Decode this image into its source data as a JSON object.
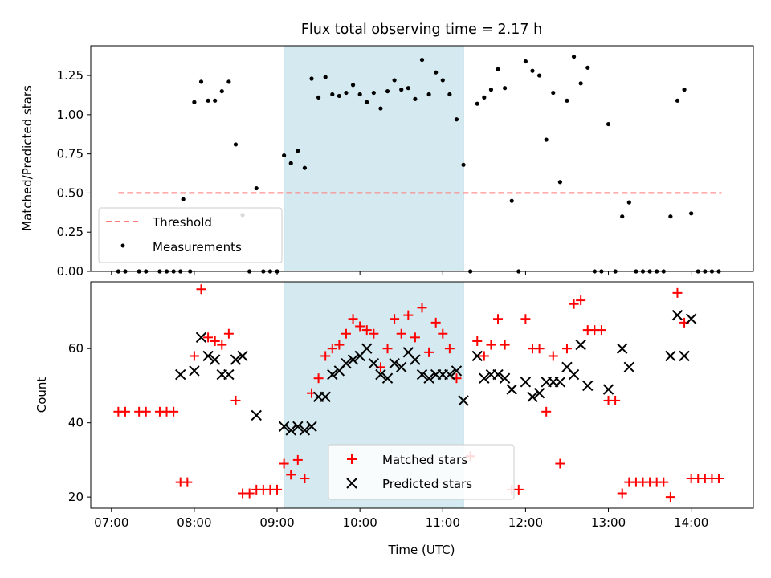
{
  "chart_data": [
    {
      "type": "scatter",
      "title": "Flux total observing time = 2.17 h",
      "ylabel": "Matched/Predicted stars",
      "xlabel": "",
      "xlim": [
        "06:45",
        "14:45"
      ],
      "ylim": [
        0,
        1.44
      ],
      "yticks": [
        0,
        0.25,
        0.5,
        0.75,
        1.0,
        1.25
      ],
      "ytick_labels": [
        "0.00",
        "0.25",
        "0.50",
        "0.75",
        "1.00",
        "1.25"
      ],
      "shaded_interval": {
        "start": "09:05",
        "end": "11:15",
        "color": "#d4eaf0"
      },
      "threshold": {
        "name": "Threshold",
        "value": 0.5,
        "x_start": "07:05",
        "x_end": "14:22",
        "color": "#ff7a7a"
      },
      "legend": {
        "position": "lower-left",
        "entries": [
          "Threshold",
          "Measurements"
        ]
      },
      "series": [
        {
          "name": "Measurements",
          "marker": "dot",
          "color": "#000000",
          "points": [
            [
              "07:05",
              0
            ],
            [
              "07:10",
              0
            ],
            [
              "07:20",
              0
            ],
            [
              "07:25",
              0
            ],
            [
              "07:35",
              0
            ],
            [
              "07:40",
              0
            ],
            [
              "07:45",
              0
            ],
            [
              "07:50",
              0
            ],
            [
              "07:52",
              0.46
            ],
            [
              "07:57",
              0
            ],
            [
              "08:00",
              1.08
            ],
            [
              "08:05",
              1.21
            ],
            [
              "08:10",
              1.09
            ],
            [
              "08:15",
              1.09
            ],
            [
              "08:20",
              1.15
            ],
            [
              "08:25",
              1.21
            ],
            [
              "08:30",
              0.81
            ],
            [
              "08:35",
              0.36
            ],
            [
              "08:40",
              0
            ],
            [
              "08:45",
              0.53
            ],
            [
              "08:50",
              0
            ],
            [
              "08:55",
              0
            ],
            [
              "09:00",
              0
            ],
            [
              "09:05",
              0.74
            ],
            [
              "09:10",
              0.69
            ],
            [
              "09:15",
              0.77
            ],
            [
              "09:20",
              0.66
            ],
            [
              "09:25",
              1.23
            ],
            [
              "09:30",
              1.11
            ],
            [
              "09:35",
              1.24
            ],
            [
              "09:40",
              1.13
            ],
            [
              "09:45",
              1.12
            ],
            [
              "09:50",
              1.14
            ],
            [
              "09:55",
              1.19
            ],
            [
              "10:00",
              1.13
            ],
            [
              "10:05",
              1.08
            ],
            [
              "10:10",
              1.14
            ],
            [
              "10:15",
              1.04
            ],
            [
              "10:20",
              1.15
            ],
            [
              "10:25",
              1.22
            ],
            [
              "10:30",
              1.16
            ],
            [
              "10:35",
              1.17
            ],
            [
              "10:40",
              1.1
            ],
            [
              "10:45",
              1.35
            ],
            [
              "10:50",
              1.13
            ],
            [
              "10:55",
              1.27
            ],
            [
              "11:00",
              1.22
            ],
            [
              "11:05",
              1.13
            ],
            [
              "11:10",
              0.97
            ],
            [
              "11:15",
              0.68
            ],
            [
              "11:20",
              0
            ],
            [
              "11:25",
              1.07
            ],
            [
              "11:30",
              1.11
            ],
            [
              "11:35",
              1.16
            ],
            [
              "11:40",
              1.29
            ],
            [
              "11:45",
              1.17
            ],
            [
              "11:50",
              0.45
            ],
            [
              "11:55",
              0
            ],
            [
              "12:00",
              1.34
            ],
            [
              "12:05",
              1.28
            ],
            [
              "12:10",
              1.25
            ],
            [
              "12:15",
              0.84
            ],
            [
              "12:20",
              1.14
            ],
            [
              "12:25",
              0.57
            ],
            [
              "12:30",
              1.09
            ],
            [
              "12:35",
              1.37
            ],
            [
              "12:40",
              1.2
            ],
            [
              "12:45",
              1.3
            ],
            [
              "12:50",
              0
            ],
            [
              "12:55",
              0
            ],
            [
              "13:00",
              0.94
            ],
            [
              "13:05",
              0
            ],
            [
              "13:10",
              0.35
            ],
            [
              "13:15",
              0.44
            ],
            [
              "13:20",
              0
            ],
            [
              "13:25",
              0
            ],
            [
              "13:30",
              0
            ],
            [
              "13:35",
              0
            ],
            [
              "13:40",
              0
            ],
            [
              "13:45",
              0.35
            ],
            [
              "13:50",
              1.09
            ],
            [
              "13:55",
              1.16
            ],
            [
              "14:00",
              0.37
            ],
            [
              "14:05",
              0
            ],
            [
              "14:10",
              0
            ],
            [
              "14:15",
              0
            ],
            [
              "14:20",
              0
            ]
          ]
        }
      ]
    },
    {
      "type": "scatter",
      "title": "",
      "ylabel": "Count",
      "xlabel": "Time (UTC)",
      "xlim": [
        "06:45",
        "14:45"
      ],
      "ylim": [
        17,
        78
      ],
      "yticks": [
        20,
        40,
        60
      ],
      "ytick_labels": [
        "20",
        "40",
        "60"
      ],
      "xticks": [
        "07:00",
        "08:00",
        "09:00",
        "10:00",
        "11:00",
        "12:00",
        "13:00",
        "14:00"
      ],
      "shaded_interval": {
        "start": "09:05",
        "end": "11:15",
        "color": "#d4eaf0"
      },
      "legend": {
        "position": "lower-center",
        "entries": [
          "Matched stars",
          "Predicted stars"
        ]
      },
      "series": [
        {
          "name": "Matched stars",
          "marker": "plus",
          "color": "#ff0000",
          "points": [
            [
              "07:05",
              43
            ],
            [
              "07:10",
              43
            ],
            [
              "07:20",
              43
            ],
            [
              "07:25",
              43
            ],
            [
              "07:35",
              43
            ],
            [
              "07:40",
              43
            ],
            [
              "07:45",
              43
            ],
            [
              "07:50",
              24
            ],
            [
              "07:55",
              24
            ],
            [
              "08:00",
              58
            ],
            [
              "08:05",
              76
            ],
            [
              "08:10",
              63
            ],
            [
              "08:15",
              62
            ],
            [
              "08:20",
              61
            ],
            [
              "08:25",
              64
            ],
            [
              "08:30",
              46
            ],
            [
              "08:35",
              21
            ],
            [
              "08:40",
              21
            ],
            [
              "08:45",
              22
            ],
            [
              "08:50",
              22
            ],
            [
              "08:55",
              22
            ],
            [
              "09:00",
              22
            ],
            [
              "09:05",
              29
            ],
            [
              "09:10",
              26
            ],
            [
              "09:15",
              30
            ],
            [
              "09:20",
              25
            ],
            [
              "09:25",
              48
            ],
            [
              "09:30",
              52
            ],
            [
              "09:35",
              58
            ],
            [
              "09:40",
              60
            ],
            [
              "09:45",
              61
            ],
            [
              "09:50",
              64
            ],
            [
              "09:55",
              68
            ],
            [
              "10:00",
              66
            ],
            [
              "10:05",
              65
            ],
            [
              "10:10",
              64
            ],
            [
              "10:15",
              55
            ],
            [
              "10:20",
              60
            ],
            [
              "10:25",
              68
            ],
            [
              "10:30",
              64
            ],
            [
              "10:35",
              69
            ],
            [
              "10:40",
              63
            ],
            [
              "10:45",
              71
            ],
            [
              "10:50",
              59
            ],
            [
              "10:55",
              67
            ],
            [
              "11:00",
              64
            ],
            [
              "11:05",
              60
            ],
            [
              "11:10",
              52
            ],
            [
              "11:20",
              31
            ],
            [
              "11:25",
              62
            ],
            [
              "11:30",
              58
            ],
            [
              "11:35",
              61
            ],
            [
              "11:40",
              68
            ],
            [
              "11:45",
              61
            ],
            [
              "11:50",
              22
            ],
            [
              "11:55",
              22
            ],
            [
              "12:00",
              68
            ],
            [
              "12:05",
              60
            ],
            [
              "12:10",
              60
            ],
            [
              "12:15",
              43
            ],
            [
              "12:20",
              58
            ],
            [
              "12:25",
              29
            ],
            [
              "12:30",
              60
            ],
            [
              "12:35",
              72
            ],
            [
              "12:40",
              73
            ],
            [
              "12:45",
              65
            ],
            [
              "12:50",
              65
            ],
            [
              "12:55",
              65
            ],
            [
              "13:00",
              46
            ],
            [
              "13:05",
              46
            ],
            [
              "13:10",
              21
            ],
            [
              "13:15",
              24
            ],
            [
              "13:20",
              24
            ],
            [
              "13:25",
              24
            ],
            [
              "13:30",
              24
            ],
            [
              "13:35",
              24
            ],
            [
              "13:40",
              24
            ],
            [
              "13:45",
              20
            ],
            [
              "13:50",
              75
            ],
            [
              "13:55",
              67
            ],
            [
              "14:00",
              25
            ],
            [
              "14:05",
              25
            ],
            [
              "14:10",
              25
            ],
            [
              "14:15",
              25
            ],
            [
              "14:20",
              25
            ]
          ]
        },
        {
          "name": "Predicted stars",
          "marker": "x",
          "color": "#000000",
          "points": [
            [
              "07:50",
              53
            ],
            [
              "08:00",
              54
            ],
            [
              "08:05",
              63
            ],
            [
              "08:10",
              58
            ],
            [
              "08:15",
              57
            ],
            [
              "08:20",
              53
            ],
            [
              "08:25",
              53
            ],
            [
              "08:30",
              57
            ],
            [
              "08:35",
              58
            ],
            [
              "08:45",
              42
            ],
            [
              "09:05",
              39
            ],
            [
              "09:10",
              38
            ],
            [
              "09:15",
              39
            ],
            [
              "09:20",
              38
            ],
            [
              "09:25",
              39
            ],
            [
              "09:30",
              47
            ],
            [
              "09:35",
              47
            ],
            [
              "09:40",
              53
            ],
            [
              "09:45",
              54
            ],
            [
              "09:50",
              56
            ],
            [
              "09:55",
              57
            ],
            [
              "10:00",
              58
            ],
            [
              "10:05",
              60
            ],
            [
              "10:10",
              56
            ],
            [
              "10:15",
              53
            ],
            [
              "10:20",
              52
            ],
            [
              "10:25",
              56
            ],
            [
              "10:30",
              55
            ],
            [
              "10:35",
              59
            ],
            [
              "10:40",
              57
            ],
            [
              "10:45",
              53
            ],
            [
              "10:50",
              52
            ],
            [
              "10:55",
              53
            ],
            [
              "11:00",
              53
            ],
            [
              "11:05",
              53
            ],
            [
              "11:10",
              54
            ],
            [
              "11:15",
              46
            ],
            [
              "11:25",
              58
            ],
            [
              "11:30",
              52
            ],
            [
              "11:35",
              53
            ],
            [
              "11:40",
              53
            ],
            [
              "11:45",
              52
            ],
            [
              "11:50",
              49
            ],
            [
              "12:00",
              51
            ],
            [
              "12:05",
              47
            ],
            [
              "12:10",
              48
            ],
            [
              "12:15",
              51
            ],
            [
              "12:20",
              51
            ],
            [
              "12:25",
              51
            ],
            [
              "12:30",
              55
            ],
            [
              "12:35",
              53
            ],
            [
              "12:40",
              61
            ],
            [
              "12:45",
              50
            ],
            [
              "13:00",
              49
            ],
            [
              "13:10",
              60
            ],
            [
              "13:15",
              55
            ],
            [
              "13:45",
              58
            ],
            [
              "13:50",
              69
            ],
            [
              "13:55",
              58
            ],
            [
              "14:00",
              68
            ]
          ]
        }
      ]
    }
  ]
}
